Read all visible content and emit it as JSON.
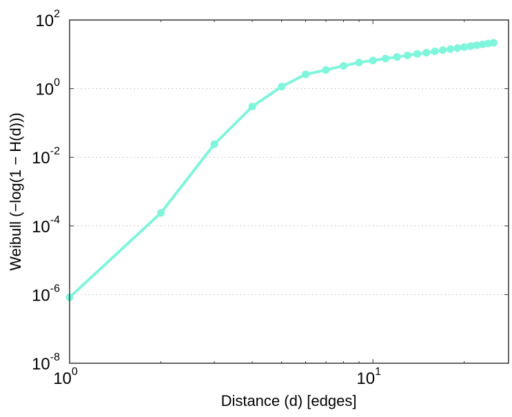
{
  "chart_data": {
    "type": "line",
    "title": "",
    "xlabel": "Distance (d) [edges]",
    "ylabel": "Weibull (−log(1 − H(d)))",
    "xscale": "log",
    "yscale": "log",
    "xlim": [
      1,
      28
    ],
    "ylim": [
      1e-08,
      100
    ],
    "grid": "y-dotted",
    "x_ticks": [
      {
        "value": 1,
        "base": "10",
        "exp": "0"
      },
      {
        "value": 10,
        "base": "10",
        "exp": "1"
      }
    ],
    "y_ticks": [
      {
        "value": 100,
        "base": "10",
        "exp": "2"
      },
      {
        "value": 1,
        "base": "10",
        "exp": "0"
      },
      {
        "value": 0.01,
        "base": "10",
        "exp": "-2"
      },
      {
        "value": 0.0001,
        "base": "10",
        "exp": "-4"
      },
      {
        "value": 1e-06,
        "base": "10",
        "exp": "-6"
      },
      {
        "value": 1e-08,
        "base": "10",
        "exp": "-8"
      }
    ],
    "series": [
      {
        "name": "Weibull",
        "color": "#7ff5dc",
        "x": [
          1,
          2,
          3,
          4,
          5,
          6,
          7,
          8,
          9,
          10,
          11,
          12,
          13,
          14,
          15,
          16,
          17,
          18,
          19,
          20,
          21,
          22,
          23,
          24,
          25
        ],
        "y": [
          8.3e-07,
          0.00024,
          0.024,
          0.3,
          1.15,
          2.6,
          3.5,
          4.6,
          5.8,
          6.6,
          7.5,
          8.4,
          9.3,
          10.3,
          11.2,
          12.2,
          13.2,
          14.2,
          15.2,
          16.3,
          17.3,
          18.4,
          19.5,
          20.6,
          21.8
        ]
      }
    ]
  }
}
